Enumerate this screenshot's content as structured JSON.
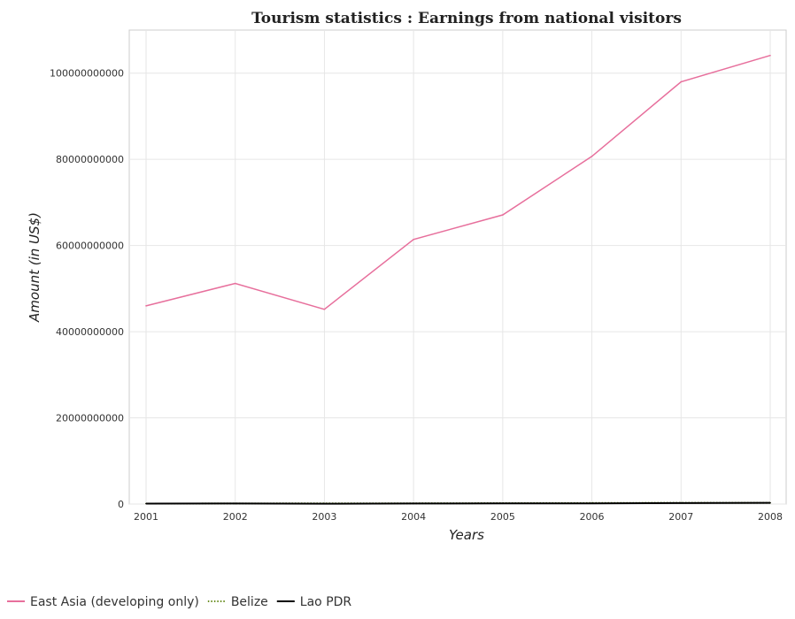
{
  "chart_data": {
    "type": "line",
    "title": "Tourism statistics : Earnings from national visitors",
    "xlabel": "Years",
    "ylabel": "Amount (in US$)",
    "x": [
      "2001",
      "2002",
      "2003",
      "2004",
      "2005",
      "2006",
      "2007",
      "2008"
    ],
    "ylim": [
      0,
      110000000000
    ],
    "yticks": [
      0,
      20000000000,
      40000000000,
      60000000000,
      80000000000,
      100000000000
    ],
    "ytick_labels": [
      "0",
      "20000000000",
      "40000000000",
      "60000000000",
      "80000000000",
      "100000000000"
    ],
    "grid": true,
    "legend_position": "bottom-left",
    "series": [
      {
        "name": "East Asia (developing only)",
        "color": "#e76f9c",
        "style": "solid",
        "values": [
          46000000000,
          51200000000,
          45200000000,
          61400000000,
          67100000000,
          80700000000,
          98000000000,
          104100000000
        ]
      },
      {
        "name": "Belize",
        "color": "#6b8e23",
        "style": "dotted",
        "values": [
          111000000,
          121000000,
          155000000,
          168000000,
          204000000,
          253000000,
          290000000,
          278000000
        ]
      },
      {
        "name": "Lao PDR",
        "color": "#000000",
        "style": "solid",
        "values": [
          104000000,
          113000000,
          87000000,
          119000000,
          143000000,
          173000000,
          233000000,
          280000000
        ]
      }
    ]
  }
}
